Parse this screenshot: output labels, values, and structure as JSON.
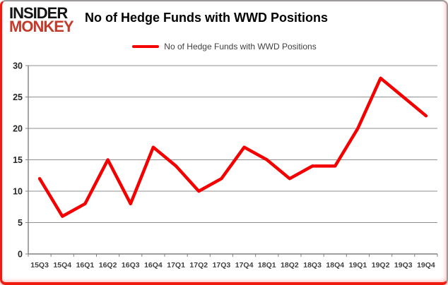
{
  "brand": {
    "line1": "INSIDER",
    "line2": "MONKEY",
    "color_line1": "#141414",
    "color_line2": "#c43a2a"
  },
  "header": {
    "title": "No of Hedge Funds with WWD Positions"
  },
  "legend": {
    "label": "No of Hedge Funds with WWD Positions",
    "line_color": "#f40000"
  },
  "chart_data": {
    "type": "line",
    "title": "No of Hedge Funds with WWD Positions",
    "categories": [
      "15Q3",
      "15Q4",
      "16Q1",
      "16Q2",
      "16Q3",
      "16Q4",
      "17Q1",
      "17Q2",
      "17Q3",
      "17Q4",
      "18Q1",
      "18Q2",
      "18Q3",
      "18Q4",
      "19Q1",
      "19Q2",
      "19Q3",
      "19Q4"
    ],
    "series": [
      {
        "name": "No of Hedge Funds with WWD Positions",
        "color": "#f40000",
        "values": [
          12,
          6,
          8,
          15,
          8,
          17,
          14,
          10,
          12,
          17,
          15,
          12,
          14,
          14,
          20,
          28,
          25,
          22
        ]
      }
    ],
    "xlabel": "",
    "ylabel": "",
    "ylim": [
      0,
      30
    ],
    "ytick_step": 5,
    "grid": true,
    "legend_position": "top-center",
    "colors": {
      "grid": "#8f8f8f",
      "axis": "#808080",
      "tick_text": "#3f3f3f"
    }
  }
}
